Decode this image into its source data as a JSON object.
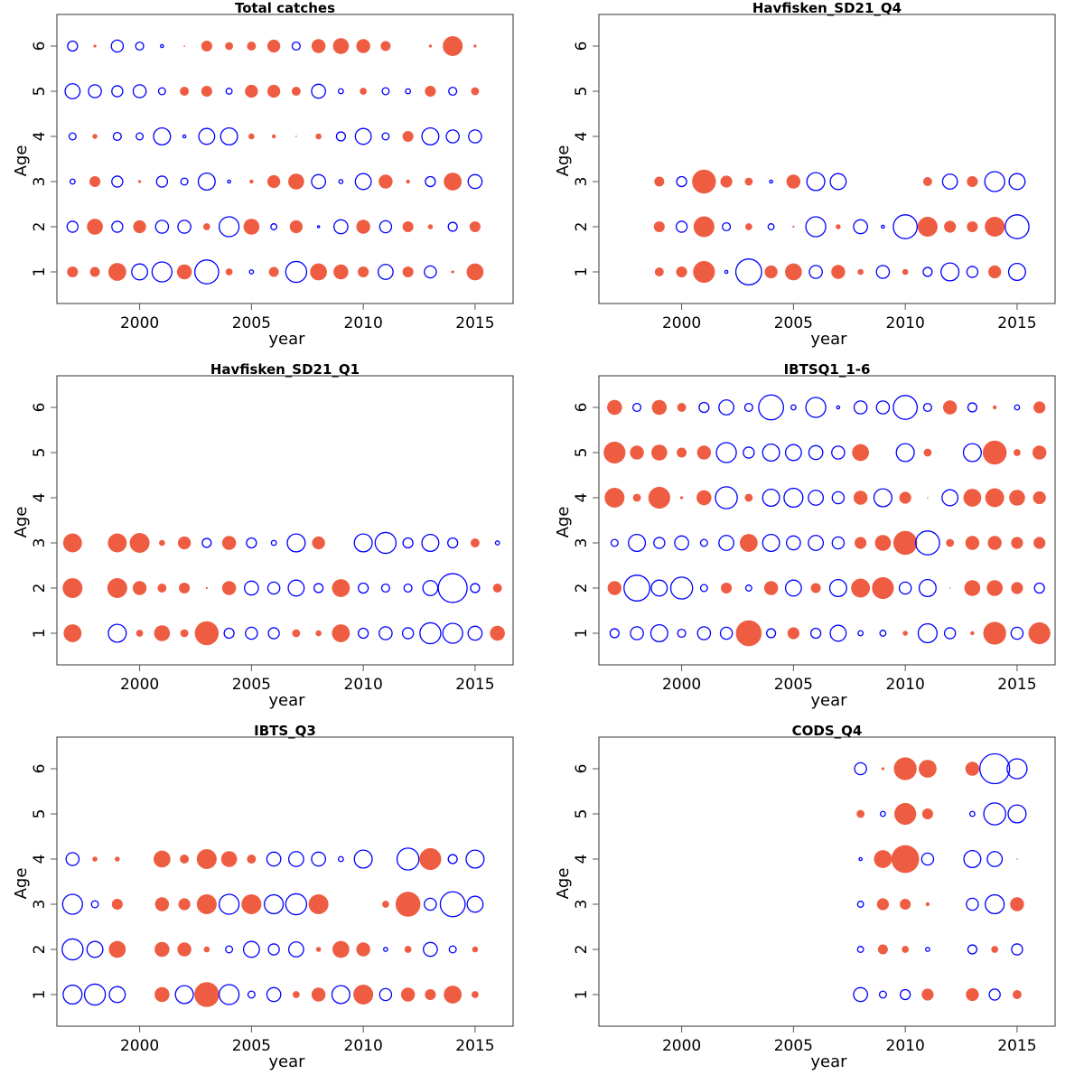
{
  "chart_data": [
    {
      "type": "scatter",
      "subtype": "bubble",
      "title": "Total catches",
      "xlabel": "year",
      "ylabel": "Age",
      "xlim": [
        1996.3,
        2016.7
      ],
      "ylim": [
        0.3,
        6.7
      ],
      "xticks": [
        2000,
        2005,
        2010,
        2015
      ],
      "yticks": [
        1,
        2,
        3,
        4,
        5,
        6
      ],
      "grid": false,
      "encoding": "positive residual = filled red, negative residual = open blue, radius ∝ |value|",
      "years": [
        1997,
        1998,
        1999,
        2000,
        2001,
        2002,
        2003,
        2004,
        2005,
        2006,
        2007,
        2008,
        2009,
        2010,
        2011,
        2012,
        2013,
        2014,
        2015
      ],
      "rows": [
        {
          "age": 6,
          "values": [
            -1.0,
            0.3,
            -1.2,
            -0.8,
            -0.3,
            0.15,
            1.1,
            0.8,
            0.9,
            1.3,
            -0.8,
            1.4,
            1.6,
            1.4,
            1.0,
            null,
            0.3,
            2.0,
            0.3
          ]
        },
        {
          "age": 5,
          "values": [
            -1.5,
            -1.3,
            -1.1,
            -1.3,
            -0.7,
            0.9,
            1.1,
            -0.6,
            1.3,
            1.3,
            0.9,
            -1.4,
            -0.5,
            0.7,
            -0.7,
            -0.5,
            1.1,
            -0.8,
            0.8
          ]
        },
        {
          "age": 4,
          "values": [
            -0.7,
            0.5,
            -0.8,
            -0.7,
            -1.7,
            -0.3,
            -1.6,
            -1.7,
            0.6,
            0.4,
            0.15,
            0.6,
            -0.9,
            -1.6,
            -0.7,
            1.1,
            -1.7,
            -1.3,
            -1.3
          ]
        },
        {
          "age": 3,
          "values": [
            -0.5,
            1.1,
            -1.1,
            0.3,
            -1.1,
            -0.7,
            -1.7,
            -0.3,
            0.4,
            1.3,
            1.6,
            -1.4,
            -0.4,
            -1.6,
            1.4,
            0.4,
            -1.0,
            1.8,
            -1.4
          ]
        },
        {
          "age": 2,
          "values": [
            -1.1,
            1.6,
            -1.1,
            1.3,
            -1.3,
            -1.3,
            0.7,
            -2.0,
            1.6,
            -0.6,
            1.3,
            -0.2,
            -1.4,
            1.4,
            -1.2,
            1.1,
            0.5,
            -0.9,
            1.1
          ]
        },
        {
          "age": 1,
          "values": [
            1.1,
            1.0,
            1.8,
            -1.6,
            -2.0,
            1.5,
            -2.4,
            0.7,
            -0.4,
            1.0,
            -2.1,
            1.7,
            1.5,
            1.1,
            -1.5,
            1.1,
            -1.2,
            0.3,
            1.7
          ]
        }
      ]
    },
    {
      "type": "scatter",
      "subtype": "bubble",
      "title": "Havfisken_SD21_Q4",
      "xlabel": "year",
      "ylabel": "Age",
      "xlim": [
        1996.3,
        2016.7
      ],
      "ylim": [
        0.3,
        6.7
      ],
      "xticks": [
        2000,
        2005,
        2010,
        2015
      ],
      "yticks": [
        1,
        2,
        3,
        4,
        5,
        6
      ],
      "grid": false,
      "years": [
        1999,
        2000,
        2001,
        2002,
        2003,
        2004,
        2005,
        2006,
        2007,
        2008,
        2009,
        2010,
        2011,
        2012,
        2013,
        2014,
        2015
      ],
      "rows": [
        {
          "age": 3,
          "values": [
            1.0,
            -1.0,
            2.4,
            1.2,
            0.8,
            -0.3,
            1.4,
            -1.8,
            -1.6,
            null,
            null,
            null,
            0.9,
            -1.5,
            1.1,
            -2.0,
            -1.6
          ]
        },
        {
          "age": 2,
          "values": [
            1.1,
            -1.1,
            2.1,
            -0.8,
            0.7,
            -0.6,
            0.2,
            -2.0,
            0.5,
            -1.4,
            -0.3,
            -2.4,
            2.0,
            1.2,
            1.1,
            2.0,
            -2.4
          ]
        },
        {
          "age": 1,
          "values": [
            0.9,
            1.1,
            2.2,
            -0.3,
            -2.6,
            1.3,
            1.7,
            -1.3,
            1.4,
            0.6,
            -1.3,
            0.6,
            -0.9,
            -1.8,
            -1.1,
            1.3,
            -1.7
          ]
        }
      ]
    },
    {
      "type": "scatter",
      "subtype": "bubble",
      "title": "Havfisken_SD21_Q1",
      "xlabel": "year",
      "ylabel": "Age",
      "xlim": [
        1996.3,
        2016.7
      ],
      "ylim": [
        0.3,
        6.7
      ],
      "xticks": [
        2000,
        2005,
        2010,
        2015
      ],
      "yticks": [
        1,
        2,
        3,
        4,
        5,
        6
      ],
      "grid": false,
      "years": [
        1997,
        1998,
        1999,
        2000,
        2001,
        2002,
        2003,
        2004,
        2005,
        2006,
        2007,
        2008,
        2009,
        2010,
        2011,
        2012,
        2013,
        2014,
        2015,
        2016
      ],
      "rows": [
        {
          "age": 3,
          "values": [
            1.9,
            null,
            1.9,
            2.0,
            0.6,
            1.3,
            -0.9,
            1.4,
            -1.0,
            -0.5,
            -1.8,
            1.3,
            null,
            -1.8,
            -2.1,
            -1.0,
            -1.7,
            -1.0,
            0.9,
            -0.4
          ]
        },
        {
          "age": 2,
          "values": [
            2.0,
            null,
            2.0,
            1.4,
            0.9,
            1.1,
            0.2,
            1.4,
            -1.4,
            -1.2,
            -1.6,
            -0.9,
            1.8,
            -1.0,
            -0.8,
            -0.8,
            -1.5,
            -2.9,
            -0.9,
            0.9
          ]
        },
        {
          "age": 1,
          "values": [
            1.8,
            null,
            -1.8,
            0.7,
            1.6,
            0.8,
            2.4,
            -1.0,
            -1.2,
            -1.1,
            0.8,
            0.6,
            1.8,
            -1.0,
            -1.3,
            -1.1,
            -2.1,
            -2.0,
            -1.4,
            1.5
          ]
        }
      ]
    },
    {
      "type": "scatter",
      "subtype": "bubble",
      "title": "IBTSQ1_1-6",
      "xlabel": "year",
      "ylabel": "Age",
      "xlim": [
        1996.3,
        2016.7
      ],
      "ylim": [
        0.3,
        6.7
      ],
      "xticks": [
        2000,
        2005,
        2010,
        2015
      ],
      "yticks": [
        1,
        2,
        3,
        4,
        5,
        6
      ],
      "grid": false,
      "years": [
        1997,
        1998,
        1999,
        2000,
        2001,
        2002,
        2003,
        2004,
        2005,
        2006,
        2007,
        2008,
        2009,
        2010,
        2011,
        2012,
        2013,
        2014,
        2015,
        2016
      ],
      "rows": [
        {
          "age": 6,
          "values": [
            1.5,
            -0.8,
            1.5,
            0.9,
            -1.0,
            -1.5,
            -0.8,
            -2.5,
            -0.5,
            -2.0,
            -0.3,
            -1.3,
            -1.3,
            -2.4,
            -0.8,
            1.4,
            -0.9,
            0.4,
            -0.5,
            1.2
          ]
        },
        {
          "age": 5,
          "values": [
            2.2,
            1.4,
            1.6,
            1.0,
            1.4,
            -2.0,
            -1.1,
            -1.7,
            -1.6,
            -1.4,
            -1.3,
            1.7,
            null,
            -1.8,
            0.8,
            null,
            -1.8,
            2.4,
            0.7,
            1.4
          ]
        },
        {
          "age": 4,
          "values": [
            2.0,
            0.8,
            2.2,
            0.3,
            1.5,
            -2.2,
            0.8,
            -1.7,
            -1.9,
            -1.5,
            -1.2,
            1.4,
            -1.8,
            1.2,
            0.1,
            -1.6,
            1.8,
            1.9,
            1.6,
            1.3
          ]
        },
        {
          "age": 3,
          "values": [
            -0.7,
            -1.7,
            -1.1,
            -1.4,
            -0.7,
            -1.5,
            1.8,
            -1.7,
            -1.4,
            -1.5,
            -1.2,
            1.2,
            1.6,
            2.4,
            -2.4,
            0.8,
            1.4,
            1.4,
            1.2,
            1.2
          ]
        },
        {
          "age": 2,
          "values": [
            1.4,
            -2.6,
            -1.6,
            -2.2,
            -0.7,
            1.1,
            -0.6,
            1.4,
            -1.6,
            1.0,
            -1.7,
            1.9,
            2.2,
            -1.2,
            -1.7,
            0.1,
            1.6,
            1.6,
            1.2,
            -1.0
          ]
        },
        {
          "age": 1,
          "values": [
            -0.9,
            -1.3,
            -1.7,
            -0.8,
            -1.3,
            -1.2,
            2.6,
            -0.9,
            1.2,
            -1.0,
            -1.6,
            -0.5,
            -0.6,
            0.5,
            -1.9,
            -1.1,
            0.4,
            2.3,
            -1.2,
            2.2
          ]
        }
      ]
    },
    {
      "type": "scatter",
      "subtype": "bubble",
      "title": "IBTS_Q3",
      "xlabel": "year",
      "ylabel": "Age",
      "xlim": [
        1996.3,
        2016.7
      ],
      "ylim": [
        0.3,
        6.7
      ],
      "xticks": [
        2000,
        2005,
        2010,
        2015
      ],
      "yticks": [
        1,
        2,
        3,
        4,
        5,
        6
      ],
      "grid": false,
      "years": [
        1997,
        1998,
        1999,
        2000,
        2001,
        2002,
        2003,
        2004,
        2005,
        2006,
        2007,
        2008,
        2009,
        2010,
        2011,
        2012,
        2013,
        2014,
        2015
      ],
      "rows": [
        {
          "age": 4,
          "values": [
            -1.3,
            0.5,
            0.5,
            null,
            1.7,
            0.9,
            2.0,
            1.6,
            0.9,
            -1.4,
            -1.5,
            -1.4,
            -0.5,
            -1.8,
            null,
            -2.2,
            2.2,
            -0.9,
            -1.8
          ]
        },
        {
          "age": 3,
          "values": [
            -2.0,
            -0.7,
            1.1,
            null,
            1.4,
            1.2,
            2.0,
            -2.0,
            2.0,
            -1.9,
            -2.1,
            2.0,
            null,
            null,
            0.7,
            2.5,
            -1.2,
            -2.5,
            -1.6
          ]
        },
        {
          "age": 2,
          "values": [
            -2.1,
            -1.6,
            1.7,
            null,
            1.5,
            1.4,
            0.6,
            -0.7,
            -1.6,
            -1.1,
            -1.5,
            0.5,
            1.7,
            1.4,
            -0.4,
            0.7,
            -1.4,
            -0.7,
            0.6
          ]
        },
        {
          "age": 1,
          "values": [
            -1.9,
            -2.1,
            -1.6,
            null,
            1.5,
            -1.8,
            2.5,
            -2.0,
            -0.7,
            -1.4,
            0.7,
            1.4,
            -1.8,
            2.0,
            -1.2,
            1.4,
            1.1,
            1.8,
            0.7
          ]
        }
      ]
    },
    {
      "type": "scatter",
      "subtype": "bubble",
      "title": "CODS_Q4",
      "xlabel": "year",
      "ylabel": "Age",
      "xlim": [
        1996.3,
        2016.7
      ],
      "ylim": [
        0.3,
        6.7
      ],
      "xticks": [
        2000,
        2005,
        2010,
        2015
      ],
      "yticks": [
        1,
        2,
        3,
        4,
        5,
        6
      ],
      "grid": false,
      "years": [
        2008,
        2009,
        2010,
        2011,
        2012,
        2013,
        2014,
        2015
      ],
      "rows": [
        {
          "age": 6,
          "values": [
            -1.2,
            0.3,
            2.3,
            1.8,
            null,
            1.4,
            -3.0,
            -2.0
          ]
        },
        {
          "age": 5,
          "values": [
            0.8,
            -0.5,
            2.2,
            1.1,
            null,
            -0.5,
            -2.2,
            -1.8
          ]
        },
        {
          "age": 4,
          "values": [
            -0.3,
            1.8,
            2.8,
            -1.2,
            null,
            -1.7,
            -1.5,
            0.1
          ]
        },
        {
          "age": 3,
          "values": [
            -0.6,
            1.2,
            1.1,
            0.4,
            null,
            -1.2,
            -1.9,
            1.4
          ]
        },
        {
          "age": 2,
          "values": [
            -0.6,
            1.0,
            0.7,
            -0.4,
            null,
            -0.9,
            0.7,
            -1.1
          ]
        },
        {
          "age": 1,
          "values": [
            -1.4,
            -0.7,
            -1.0,
            1.2,
            null,
            1.3,
            -1.1,
            0.9
          ]
        }
      ]
    }
  ],
  "colors": {
    "positive": "#ee5c42",
    "negative": "#0000ff"
  }
}
